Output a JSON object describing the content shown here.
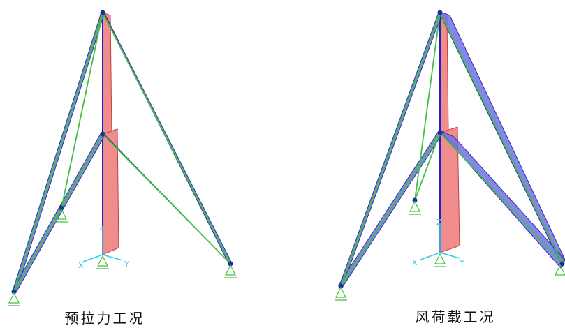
{
  "captions": [
    "预拉力工况",
    "风荷载工况"
  ],
  "axes": {
    "x": "X",
    "y": "Y",
    "z": "Z"
  }
}
